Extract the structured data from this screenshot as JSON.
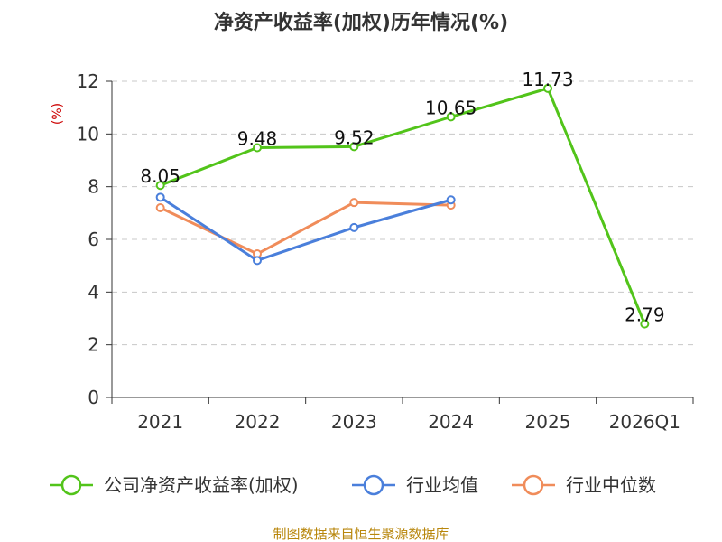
{
  "chart_data": {
    "type": "line",
    "title": "净资产收益率(加权)历年情况(%)",
    "ylabel": "(%)",
    "xlabel": "",
    "categories": [
      "2021",
      "2022",
      "2023",
      "2024",
      "2025",
      "2026Q1"
    ],
    "ylim": [
      0,
      12
    ],
    "yticks": [
      0,
      2,
      4,
      6,
      8,
      10,
      12
    ],
    "grid": true,
    "legend": "bottom",
    "series": [
      {
        "name": "公司净资产收益率(加权)",
        "color": "#52c41a",
        "values": [
          8.05,
          9.48,
          9.52,
          10.65,
          11.73,
          2.79
        ],
        "labels": [
          "8.05",
          "9.48",
          "9.52",
          "10.65",
          "11.73",
          "2.79"
        ]
      },
      {
        "name": "行业均值",
        "color": "#4a7fdb",
        "values": [
          7.6,
          5.2,
          6.45,
          7.5,
          null,
          null
        ]
      },
      {
        "name": "行业中位数",
        "color": "#f08c5a",
        "values": [
          7.2,
          5.45,
          7.4,
          7.3,
          null,
          null
        ]
      }
    ]
  },
  "footer": {
    "source": "制图数据来自恒生聚源数据库"
  }
}
